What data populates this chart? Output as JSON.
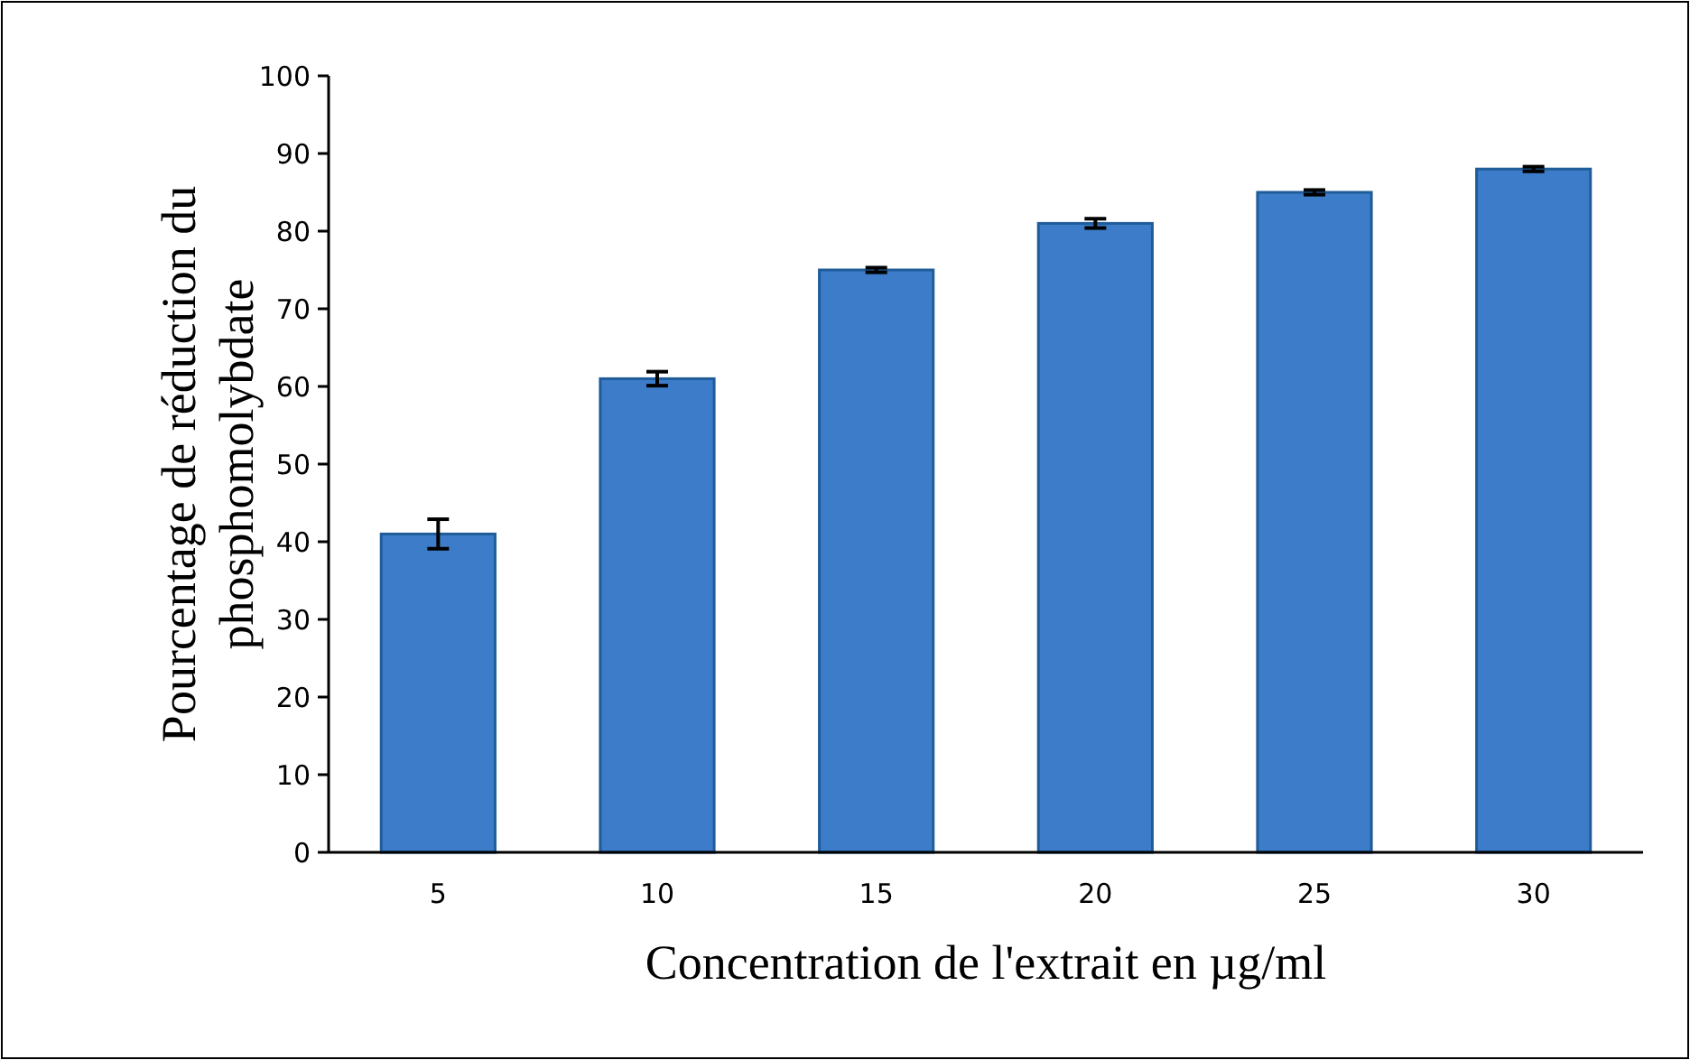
{
  "chart_data": {
    "type": "bar",
    "xlabel": "Concentration de l'extrait en µg/ml",
    "ylabel": "Pourcentage de réduction du phosphomolybdate",
    "categories": [
      "5",
      "10",
      "15",
      "20",
      "25",
      "30"
    ],
    "values": [
      41,
      61,
      75,
      81,
      85,
      88
    ],
    "errors": [
      1.9,
      0.9,
      0.3,
      0.6,
      0.3,
      0.3
    ],
    "color": "#3d7cc9",
    "ylim": [
      0,
      100
    ],
    "yticks": [
      0,
      10,
      20,
      30,
      40,
      50,
      60,
      70,
      80,
      90,
      100
    ]
  }
}
